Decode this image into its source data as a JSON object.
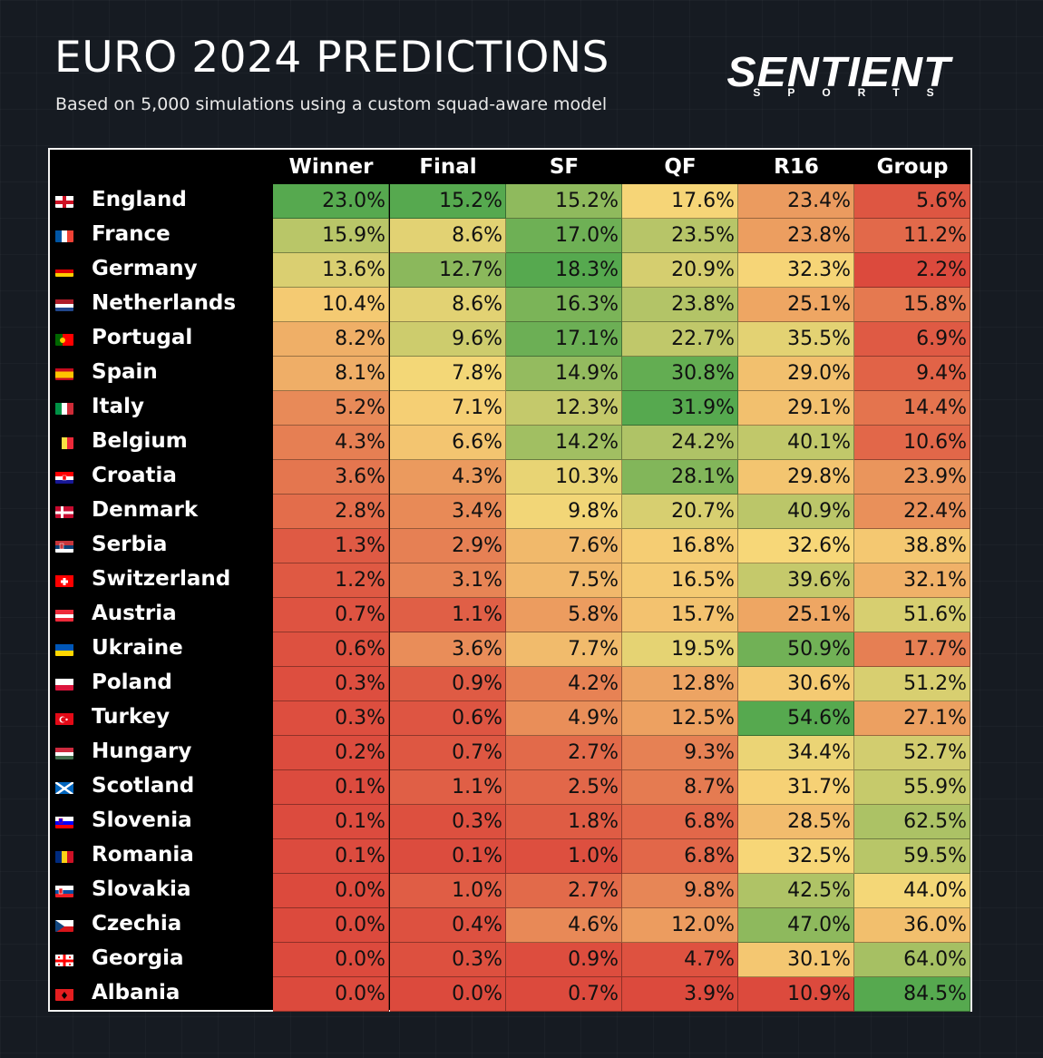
{
  "header": {
    "title": "EURO 2024 PREDICTIONS",
    "subtitle": "Based on 5,000 simulations using a custom squad-aware model"
  },
  "logo": {
    "main": "SENTIENT",
    "sub": "SPORTS"
  },
  "chart_data": {
    "type": "table",
    "columns": [
      "Winner",
      "Final",
      "SF",
      "QF",
      "R16",
      "Group"
    ],
    "rows": [
      {
        "country": "England",
        "flag": "england-flag-icon",
        "values": [
          "23.0%",
          "15.2%",
          "15.2%",
          "17.6%",
          "23.4%",
          "5.6%"
        ]
      },
      {
        "country": "France",
        "flag": "france-flag-icon",
        "values": [
          "15.9%",
          "8.6%",
          "17.0%",
          "23.5%",
          "23.8%",
          "11.2%"
        ]
      },
      {
        "country": "Germany",
        "flag": "germany-flag-icon",
        "values": [
          "13.6%",
          "12.7%",
          "18.3%",
          "20.9%",
          "32.3%",
          "2.2%"
        ]
      },
      {
        "country": "Netherlands",
        "flag": "netherlands-flag-icon",
        "values": [
          "10.4%",
          "8.6%",
          "16.3%",
          "23.8%",
          "25.1%",
          "15.8%"
        ]
      },
      {
        "country": "Portugal",
        "flag": "portugal-flag-icon",
        "values": [
          "8.2%",
          "9.6%",
          "17.1%",
          "22.7%",
          "35.5%",
          "6.9%"
        ]
      },
      {
        "country": "Spain",
        "flag": "spain-flag-icon",
        "values": [
          "8.1%",
          "7.8%",
          "14.9%",
          "30.8%",
          "29.0%",
          "9.4%"
        ]
      },
      {
        "country": "Italy",
        "flag": "italy-flag-icon",
        "values": [
          "5.2%",
          "7.1%",
          "12.3%",
          "31.9%",
          "29.1%",
          "14.4%"
        ]
      },
      {
        "country": "Belgium",
        "flag": "belgium-flag-icon",
        "values": [
          "4.3%",
          "6.6%",
          "14.2%",
          "24.2%",
          "40.1%",
          "10.6%"
        ]
      },
      {
        "country": "Croatia",
        "flag": "croatia-flag-icon",
        "values": [
          "3.6%",
          "4.3%",
          "10.3%",
          "28.1%",
          "29.8%",
          "23.9%"
        ]
      },
      {
        "country": "Denmark",
        "flag": "denmark-flag-icon",
        "values": [
          "2.8%",
          "3.4%",
          "9.8%",
          "20.7%",
          "40.9%",
          "22.4%"
        ]
      },
      {
        "country": "Serbia",
        "flag": "serbia-flag-icon",
        "values": [
          "1.3%",
          "2.9%",
          "7.6%",
          "16.8%",
          "32.6%",
          "38.8%"
        ]
      },
      {
        "country": "Switzerland",
        "flag": "switzerland-flag-icon",
        "values": [
          "1.2%",
          "3.1%",
          "7.5%",
          "16.5%",
          "39.6%",
          "32.1%"
        ]
      },
      {
        "country": "Austria",
        "flag": "austria-flag-icon",
        "values": [
          "0.7%",
          "1.1%",
          "5.8%",
          "15.7%",
          "25.1%",
          "51.6%"
        ]
      },
      {
        "country": "Ukraine",
        "flag": "ukraine-flag-icon",
        "values": [
          "0.6%",
          "3.6%",
          "7.7%",
          "19.5%",
          "50.9%",
          "17.7%"
        ]
      },
      {
        "country": "Poland",
        "flag": "poland-flag-icon",
        "values": [
          "0.3%",
          "0.9%",
          "4.2%",
          "12.8%",
          "30.6%",
          "51.2%"
        ]
      },
      {
        "country": "Turkey",
        "flag": "turkey-flag-icon",
        "values": [
          "0.3%",
          "0.6%",
          "4.9%",
          "12.5%",
          "54.6%",
          "27.1%"
        ]
      },
      {
        "country": "Hungary",
        "flag": "hungary-flag-icon",
        "values": [
          "0.2%",
          "0.7%",
          "2.7%",
          "9.3%",
          "34.4%",
          "52.7%"
        ]
      },
      {
        "country": "Scotland",
        "flag": "scotland-flag-icon",
        "values": [
          "0.1%",
          "1.1%",
          "2.5%",
          "8.7%",
          "31.7%",
          "55.9%"
        ]
      },
      {
        "country": "Slovenia",
        "flag": "slovenia-flag-icon",
        "values": [
          "0.1%",
          "0.3%",
          "1.8%",
          "6.8%",
          "28.5%",
          "62.5%"
        ]
      },
      {
        "country": "Romania",
        "flag": "romania-flag-icon",
        "values": [
          "0.1%",
          "0.1%",
          "1.0%",
          "6.8%",
          "32.5%",
          "59.5%"
        ]
      },
      {
        "country": "Slovakia",
        "flag": "slovakia-flag-icon",
        "values": [
          "0.0%",
          "1.0%",
          "2.7%",
          "9.8%",
          "42.5%",
          "44.0%"
        ]
      },
      {
        "country": "Czechia",
        "flag": "czechia-flag-icon",
        "values": [
          "0.0%",
          "0.4%",
          "4.6%",
          "12.0%",
          "47.0%",
          "36.0%"
        ]
      },
      {
        "country": "Georgia",
        "flag": "georgia-flag-icon",
        "values": [
          "0.0%",
          "0.3%",
          "0.9%",
          "4.7%",
          "30.1%",
          "64.0%"
        ]
      },
      {
        "country": "Albania",
        "flag": "albania-flag-icon",
        "values": [
          "0.0%",
          "0.0%",
          "0.7%",
          "3.9%",
          "10.9%",
          "84.5%"
        ]
      }
    ],
    "color_scale": {
      "low": "#dc4a3d",
      "mid": "#f7d878",
      "high": "#56a94f"
    }
  }
}
